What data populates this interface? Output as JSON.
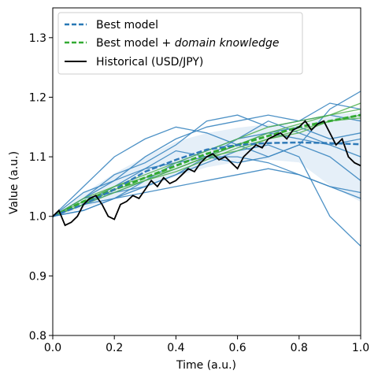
{
  "chart_data": {
    "type": "line",
    "xlabel": "Time (a.u.)",
    "ylabel": "Value (a.u.)",
    "xlim": [
      0.0,
      1.0
    ],
    "ylim": [
      0.8,
      1.35
    ],
    "x_ticks": [
      "0.0",
      "0.2",
      "0.4",
      "0.6",
      "0.8",
      "1.0"
    ],
    "y_ticks": [
      "0.8",
      "0.9",
      "1.0",
      "1.1",
      "1.2",
      "1.3"
    ],
    "grid": false,
    "legend_position": "top-left",
    "legend": [
      {
        "label_plain": "Best model",
        "style": "dashed",
        "color": "#2878b5"
      },
      {
        "label_plain": "Best model + ",
        "label_italic": "domain knowledge",
        "style": "dashed",
        "color": "#33aa33"
      },
      {
        "label_plain": "Historical (USD/JPY)",
        "style": "solid",
        "color": "#000000"
      }
    ],
    "colors": {
      "best_model": "#2f7ab8",
      "best_sample": "#3b86c0",
      "band": "#c6dbef",
      "domain": "#33aa33",
      "domain_sample": "#4daf4a",
      "historical": "#000000"
    },
    "series": [
      {
        "name": "Best model",
        "style": "dashed",
        "x": [
          0.0,
          0.1,
          0.2,
          0.3,
          0.4,
          0.5,
          0.6,
          0.7,
          0.8,
          0.9,
          1.0
        ],
        "y": [
          1.0,
          1.02,
          1.045,
          1.075,
          1.095,
          1.112,
          1.12,
          1.123,
          1.124,
          1.123,
          1.121
        ]
      },
      {
        "name": "Best model + domain knowledge",
        "style": "dashed",
        "x": [
          0.0,
          0.1,
          0.2,
          0.3,
          0.4,
          0.5,
          0.6,
          0.7,
          0.8,
          0.9,
          1.0
        ],
        "y": [
          1.0,
          1.025,
          1.045,
          1.065,
          1.085,
          1.105,
          1.12,
          1.135,
          1.15,
          1.16,
          1.17
        ]
      },
      {
        "name": "Historical (USD/JPY)",
        "style": "solid",
        "x": [
          0.0,
          0.02,
          0.04,
          0.06,
          0.08,
          0.1,
          0.12,
          0.14,
          0.16,
          0.18,
          0.2,
          0.22,
          0.24,
          0.26,
          0.28,
          0.3,
          0.32,
          0.34,
          0.36,
          0.38,
          0.4,
          0.42,
          0.44,
          0.46,
          0.48,
          0.5,
          0.52,
          0.54,
          0.56,
          0.58,
          0.6,
          0.62,
          0.64,
          0.66,
          0.68,
          0.7,
          0.72,
          0.74,
          0.76,
          0.78,
          0.8,
          0.82,
          0.84,
          0.86,
          0.88,
          0.9,
          0.92,
          0.94,
          0.96,
          0.98,
          1.0
        ],
        "y": [
          1.0,
          1.01,
          0.985,
          0.99,
          1.0,
          1.02,
          1.03,
          1.035,
          1.02,
          1.0,
          0.995,
          1.02,
          1.025,
          1.035,
          1.03,
          1.045,
          1.06,
          1.05,
          1.065,
          1.055,
          1.06,
          1.07,
          1.08,
          1.075,
          1.09,
          1.1,
          1.105,
          1.095,
          1.1,
          1.09,
          1.08,
          1.1,
          1.11,
          1.12,
          1.115,
          1.13,
          1.135,
          1.14,
          1.13,
          1.145,
          1.15,
          1.16,
          1.145,
          1.155,
          1.16,
          1.14,
          1.12,
          1.13,
          1.1,
          1.09,
          1.085
        ]
      },
      {
        "name": "",
        "group": "best-samples",
        "x": [
          0.0,
          0.1,
          0.2,
          0.3,
          0.4,
          0.5,
          0.6,
          0.7,
          0.8,
          0.9,
          1.0
        ],
        "y": [
          1.0,
          1.05,
          1.1,
          1.13,
          1.15,
          1.14,
          1.12,
          1.1,
          1.12,
          1.18,
          1.21
        ]
      },
      {
        "name": "",
        "group": "best-samples",
        "x": [
          0.0,
          0.1,
          0.2,
          0.3,
          0.4,
          0.5,
          0.6,
          0.7,
          0.8,
          0.9,
          1.0
        ],
        "y": [
          1.0,
          1.04,
          1.06,
          1.1,
          1.13,
          1.15,
          1.16,
          1.17,
          1.16,
          1.19,
          1.18
        ]
      },
      {
        "name": "",
        "group": "best-samples",
        "x": [
          0.0,
          0.1,
          0.2,
          0.3,
          0.4,
          0.5,
          0.6,
          0.7,
          0.8,
          0.9,
          1.0
        ],
        "y": [
          1.0,
          1.03,
          1.07,
          1.09,
          1.12,
          1.16,
          1.17,
          1.15,
          1.16,
          1.17,
          1.16
        ]
      },
      {
        "name": "",
        "group": "best-samples",
        "x": [
          0.0,
          0.1,
          0.2,
          0.3,
          0.4,
          0.5,
          0.6,
          0.7,
          0.8,
          0.9,
          1.0
        ],
        "y": [
          1.0,
          1.02,
          1.05,
          1.08,
          1.11,
          1.1,
          1.13,
          1.16,
          1.14,
          1.12,
          1.13
        ]
      },
      {
        "name": "",
        "group": "best-samples",
        "x": [
          0.0,
          0.1,
          0.2,
          0.3,
          0.4,
          0.5,
          0.6,
          0.7,
          0.8,
          0.9,
          1.0
        ],
        "y": [
          1.0,
          1.03,
          1.04,
          1.06,
          1.09,
          1.1,
          1.12,
          1.14,
          1.15,
          1.13,
          1.14
        ]
      },
      {
        "name": "",
        "group": "best-samples",
        "x": [
          0.0,
          0.1,
          0.2,
          0.3,
          0.4,
          0.5,
          0.6,
          0.7,
          0.8,
          0.9,
          1.0
        ],
        "y": [
          1.0,
          1.02,
          1.04,
          1.05,
          1.07,
          1.1,
          1.09,
          1.1,
          1.12,
          1.1,
          1.06
        ]
      },
      {
        "name": "",
        "group": "best-samples",
        "x": [
          0.0,
          0.1,
          0.2,
          0.3,
          0.4,
          0.5,
          0.6,
          0.7,
          0.8,
          0.9,
          1.0
        ],
        "y": [
          1.0,
          1.01,
          1.03,
          1.06,
          1.08,
          1.1,
          1.1,
          1.09,
          1.07,
          1.05,
          1.04
        ]
      },
      {
        "name": "",
        "group": "best-samples",
        "x": [
          0.0,
          0.1,
          0.2,
          0.3,
          0.4,
          0.5,
          0.6,
          0.7,
          0.8,
          0.9,
          1.0
        ],
        "y": [
          1.0,
          1.02,
          1.03,
          1.04,
          1.05,
          1.06,
          1.07,
          1.08,
          1.07,
          1.05,
          1.03
        ]
      },
      {
        "name": "",
        "group": "best-samples",
        "x": [
          0.0,
          0.1,
          0.2,
          0.3,
          0.4,
          0.5,
          0.6,
          0.7,
          0.8,
          0.9,
          1.0
        ],
        "y": [
          1.0,
          1.01,
          1.03,
          1.05,
          1.07,
          1.09,
          1.11,
          1.12,
          1.1,
          1.0,
          0.95
        ]
      },
      {
        "name": "",
        "group": "best-samples",
        "x": [
          0.0,
          0.1,
          0.2,
          0.3,
          0.4,
          0.5,
          0.6,
          0.7,
          0.8,
          0.9,
          1.0
        ],
        "y": [
          1.0,
          1.03,
          1.06,
          1.08,
          1.09,
          1.11,
          1.13,
          1.14,
          1.13,
          1.12,
          1.1
        ]
      },
      {
        "name": "",
        "group": "domain-samples",
        "x": [
          0.0,
          0.1,
          0.2,
          0.3,
          0.4,
          0.5,
          0.6,
          0.7,
          0.8,
          0.9,
          1.0
        ],
        "y": [
          1.0,
          1.03,
          1.05,
          1.07,
          1.09,
          1.11,
          1.13,
          1.15,
          1.16,
          1.17,
          1.19
        ]
      },
      {
        "name": "",
        "group": "domain-samples",
        "x": [
          0.0,
          0.1,
          0.2,
          0.3,
          0.4,
          0.5,
          0.6,
          0.7,
          0.8,
          0.9,
          1.0
        ],
        "y": [
          1.0,
          1.02,
          1.04,
          1.06,
          1.08,
          1.1,
          1.11,
          1.13,
          1.14,
          1.16,
          1.17
        ]
      },
      {
        "name": "",
        "group": "domain-samples",
        "x": [
          0.0,
          0.1,
          0.2,
          0.3,
          0.4,
          0.5,
          0.6,
          0.7,
          0.8,
          0.9,
          1.0
        ],
        "y": [
          1.0,
          1.025,
          1.05,
          1.065,
          1.08,
          1.1,
          1.12,
          1.14,
          1.155,
          1.17,
          1.18
        ]
      },
      {
        "name": "",
        "group": "domain-samples",
        "x": [
          0.0,
          0.1,
          0.2,
          0.3,
          0.4,
          0.5,
          0.6,
          0.7,
          0.8,
          0.9,
          1.0
        ],
        "y": [
          1.0,
          1.02,
          1.045,
          1.06,
          1.075,
          1.095,
          1.115,
          1.13,
          1.145,
          1.16,
          1.165
        ]
      }
    ]
  }
}
